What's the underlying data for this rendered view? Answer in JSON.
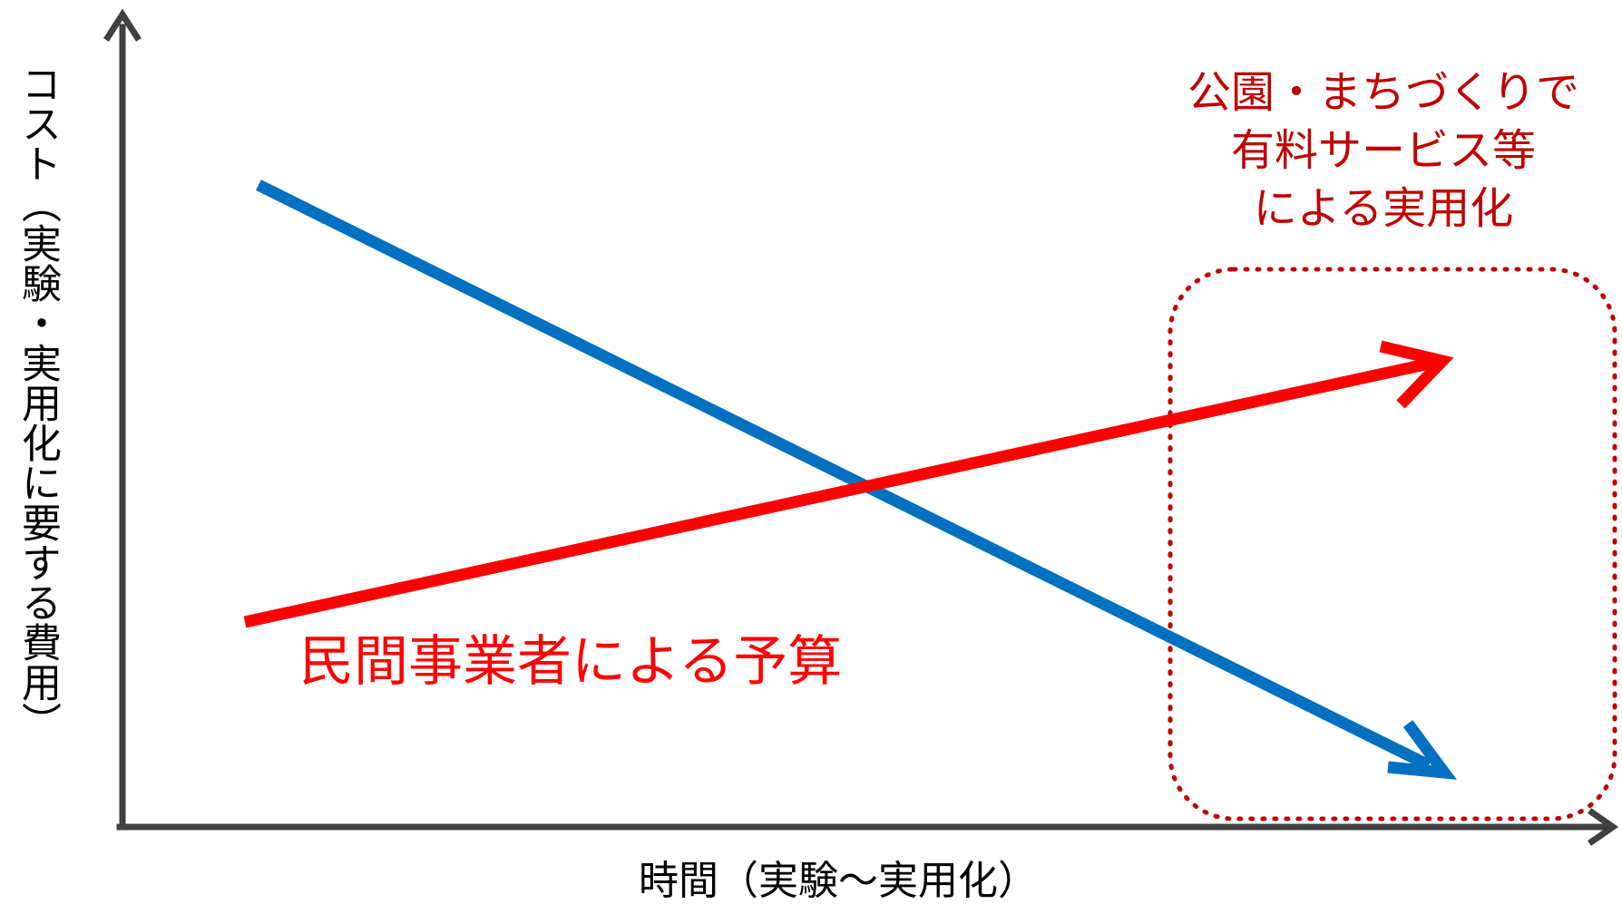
{
  "ylabel": "コスト（実験・実用化に要する費用）",
  "xlabel": "時間（実験～実用化）",
  "annotation": {
    "lines": [
      "公園・まちづくりで",
      "有料サービス等",
      "による実用化"
    ]
  },
  "series_label": "民間事業者による予算",
  "colors": {
    "axis": "#404040",
    "blue_line": "#0070c0",
    "red_line": "#ff0000",
    "annotation_text": "#c00000",
    "dotted_box": "#c00000"
  }
}
